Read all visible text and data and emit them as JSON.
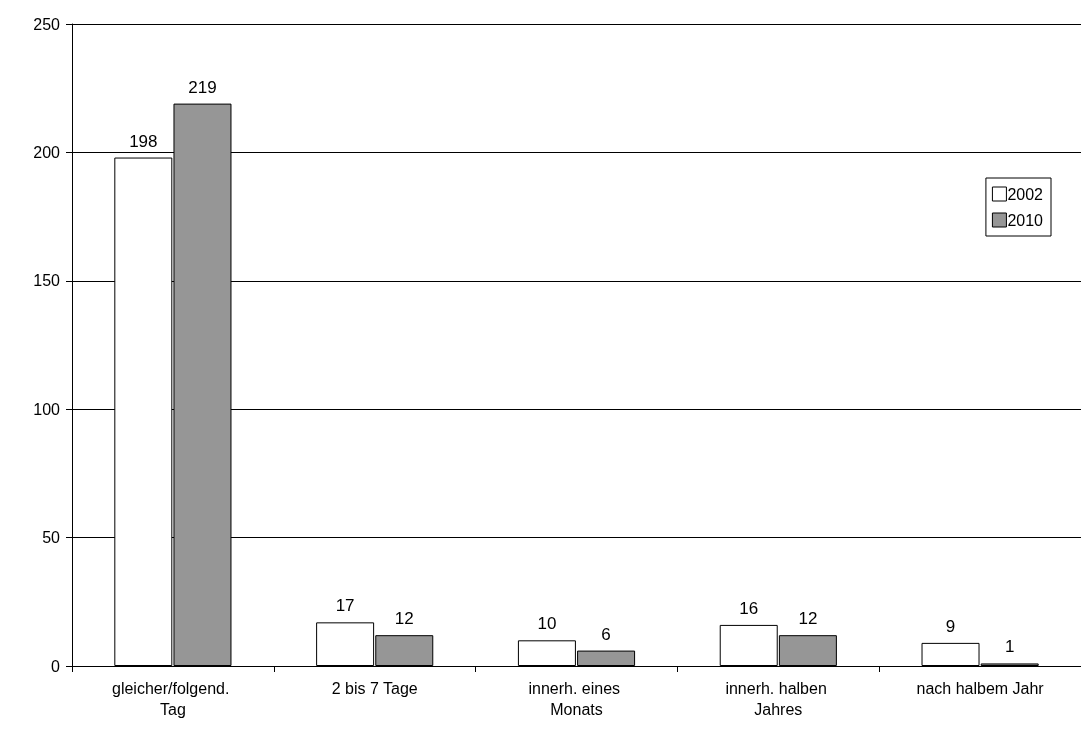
{
  "chart_data": {
    "type": "bar",
    "categories": [
      "gleicher/folgend. Tag",
      "2 bis 7 Tage",
      "innerh. eines Monats",
      "innerh. halben Jahres",
      "nach halbem Jahr"
    ],
    "series": [
      {
        "name": "2002",
        "color": "#ffffff",
        "values": [
          198,
          17,
          10,
          16,
          9
        ]
      },
      {
        "name": "2010",
        "color": "#969696",
        "values": [
          219,
          12,
          6,
          12,
          1
        ]
      }
    ],
    "ylim": [
      0,
      250
    ],
    "yticks": [
      0,
      50,
      100,
      150,
      200,
      250
    ],
    "grid": "y",
    "legend": "right",
    "data_labels": true
  }
}
